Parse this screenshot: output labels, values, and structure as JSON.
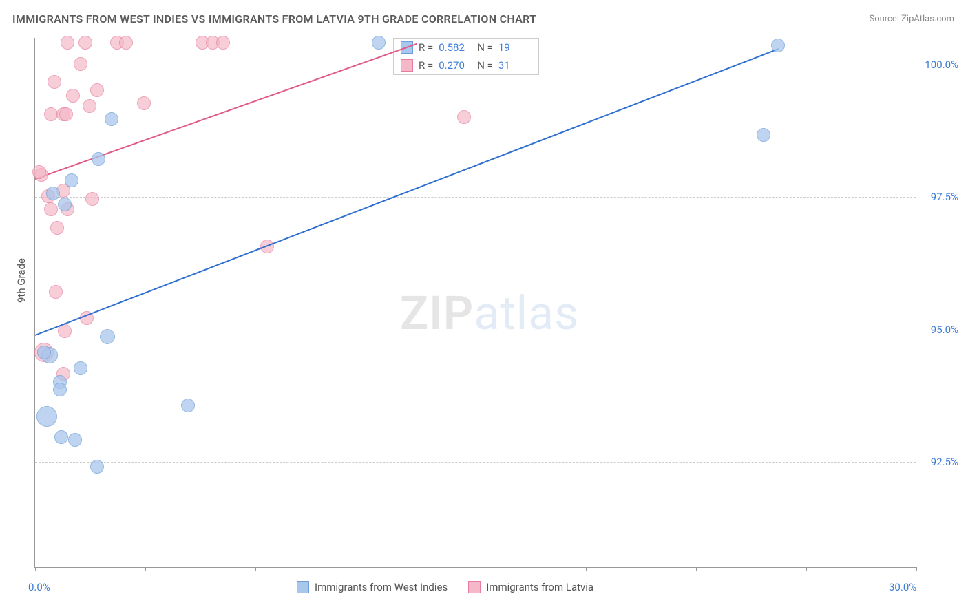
{
  "title": "IMMIGRANTS FROM WEST INDIES VS IMMIGRANTS FROM LATVIA 9TH GRADE CORRELATION CHART",
  "source_label": "Source: ZipAtlas.com",
  "watermark": {
    "left": "ZIP",
    "right": "atlas"
  },
  "y_axis_label": "9th Grade",
  "chart": {
    "type": "scatter-with-trend",
    "background_color": "#ffffff",
    "grid_color": "#cccccc",
    "axis_color": "#999999",
    "tick_label_color": "#3b7dd8",
    "tick_fontsize": 15,
    "title_fontsize": 16,
    "title_color": "#5a5a5a",
    "xlim": [
      0,
      30
    ],
    "ylim": [
      90.5,
      100.5
    ],
    "y_ticks": [
      92.5,
      95.0,
      97.5,
      100.0
    ],
    "y_tick_labels": [
      "92.5%",
      "95.0%",
      "97.5%",
      "100.0%"
    ],
    "x_ticks": [
      0,
      3.75,
      7.5,
      11.25,
      15,
      18.75,
      22.5,
      26.25,
      30
    ],
    "x_tick_labels_shown": {
      "0": "0.0%",
      "30": "30.0%"
    },
    "series": [
      {
        "name": "Immigrants from West Indies",
        "key": "west_indies",
        "marker_fill": "#a9c6ec",
        "marker_stroke": "#6f9fd8",
        "marker_opacity": 0.75,
        "marker_radius": 10,
        "trend_color": "#2e6fd0",
        "trend_width": 2,
        "trend": {
          "x1": 0,
          "y1": 94.9,
          "x2": 25.3,
          "y2": 100.3
        },
        "stats": {
          "R": "0.582",
          "N": "19"
        },
        "points": [
          {
            "x": 11.7,
            "y": 100.4,
            "r": 10
          },
          {
            "x": 25.3,
            "y": 100.35,
            "r": 10
          },
          {
            "x": 24.8,
            "y": 98.65,
            "r": 10
          },
          {
            "x": 2.6,
            "y": 98.95,
            "r": 10
          },
          {
            "x": 2.15,
            "y": 98.2,
            "r": 10
          },
          {
            "x": 1.25,
            "y": 97.8,
            "r": 10
          },
          {
            "x": 1.0,
            "y": 97.35,
            "r": 10
          },
          {
            "x": 0.6,
            "y": 97.55,
            "r": 10
          },
          {
            "x": 2.45,
            "y": 94.85,
            "r": 11
          },
          {
            "x": 1.55,
            "y": 94.25,
            "r": 10
          },
          {
            "x": 0.85,
            "y": 94.0,
            "r": 10
          },
          {
            "x": 0.85,
            "y": 93.85,
            "r": 10
          },
          {
            "x": 5.2,
            "y": 93.55,
            "r": 10
          },
          {
            "x": 0.4,
            "y": 93.35,
            "r": 15
          },
          {
            "x": 0.9,
            "y": 92.95,
            "r": 10
          },
          {
            "x": 1.35,
            "y": 92.9,
            "r": 10
          },
          {
            "x": 2.1,
            "y": 92.4,
            "r": 10
          },
          {
            "x": 0.5,
            "y": 94.5,
            "r": 12
          },
          {
            "x": 0.3,
            "y": 94.55,
            "r": 10
          }
        ]
      },
      {
        "name": "Immigrants from Latvia",
        "key": "latvia",
        "marker_fill": "#f4b8c8",
        "marker_stroke": "#e77ca0",
        "marker_opacity": 0.7,
        "marker_radius": 10,
        "trend_color": "#e05a88",
        "trend_width": 2,
        "trend": {
          "x1": 0,
          "y1": 97.85,
          "x2": 13.0,
          "y2": 100.4
        },
        "stats": {
          "R": "0.270",
          "N": "31"
        },
        "points": [
          {
            "x": 1.1,
            "y": 100.4,
            "r": 10
          },
          {
            "x": 1.7,
            "y": 100.4,
            "r": 10
          },
          {
            "x": 2.8,
            "y": 100.4,
            "r": 10
          },
          {
            "x": 3.1,
            "y": 100.4,
            "r": 10
          },
          {
            "x": 5.7,
            "y": 100.4,
            "r": 10
          },
          {
            "x": 6.05,
            "y": 100.4,
            "r": 10
          },
          {
            "x": 6.4,
            "y": 100.4,
            "r": 10
          },
          {
            "x": 1.55,
            "y": 100.0,
            "r": 10
          },
          {
            "x": 0.65,
            "y": 99.65,
            "r": 10
          },
          {
            "x": 1.3,
            "y": 99.4,
            "r": 10
          },
          {
            "x": 2.1,
            "y": 99.5,
            "r": 10
          },
          {
            "x": 1.85,
            "y": 99.2,
            "r": 10
          },
          {
            "x": 3.7,
            "y": 99.25,
            "r": 10
          },
          {
            "x": 0.55,
            "y": 99.05,
            "r": 10
          },
          {
            "x": 0.95,
            "y": 99.05,
            "r": 10
          },
          {
            "x": 1.05,
            "y": 99.05,
            "r": 10
          },
          {
            "x": 14.6,
            "y": 99.0,
            "r": 10
          },
          {
            "x": 0.2,
            "y": 97.9,
            "r": 10
          },
          {
            "x": 0.95,
            "y": 97.6,
            "r": 10
          },
          {
            "x": 0.45,
            "y": 97.5,
            "r": 10
          },
          {
            "x": 1.95,
            "y": 97.45,
            "r": 10
          },
          {
            "x": 0.55,
            "y": 97.25,
            "r": 10
          },
          {
            "x": 1.1,
            "y": 97.25,
            "r": 10
          },
          {
            "x": 0.75,
            "y": 96.9,
            "r": 10
          },
          {
            "x": 7.9,
            "y": 96.55,
            "r": 10
          },
          {
            "x": 0.7,
            "y": 95.7,
            "r": 10
          },
          {
            "x": 1.75,
            "y": 95.2,
            "r": 10
          },
          {
            "x": 1.0,
            "y": 94.95,
            "r": 10
          },
          {
            "x": 0.3,
            "y": 94.55,
            "r": 14
          },
          {
            "x": 0.95,
            "y": 94.15,
            "r": 10
          },
          {
            "x": 0.15,
            "y": 97.95,
            "r": 10
          }
        ]
      }
    ]
  },
  "stats_box_labels": {
    "R": "R =",
    "N": "N ="
  },
  "legend_swatch_blue": {
    "fill": "#a9c6ec",
    "stroke": "#6f9fd8"
  },
  "legend_swatch_pink": {
    "fill": "#f4b8c8",
    "stroke": "#e77ca0"
  }
}
